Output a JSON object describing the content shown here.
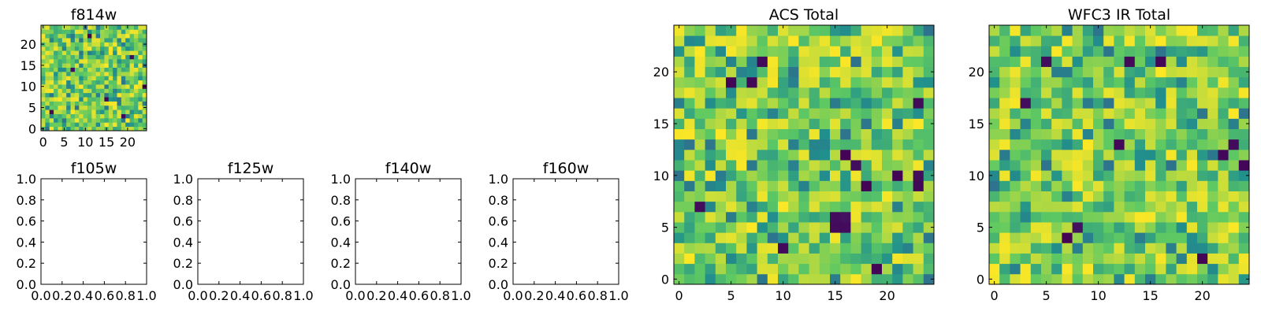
{
  "chart_data": [
    {
      "type": "heatmap",
      "title": "f814w",
      "xlabel": "",
      "ylabel": "",
      "shape": [
        25,
        25
      ],
      "xlim": [
        -0.5,
        24.5
      ],
      "ylim": [
        -0.5,
        24.5
      ],
      "xticks": [
        0,
        5,
        10,
        15,
        20
      ],
      "yticks": [
        0,
        5,
        10,
        15,
        20
      ],
      "colormap": "viridis",
      "noise_seed": 814,
      "dark_pixels": [
        [
          15,
          7
        ],
        [
          24,
          10
        ],
        [
          21,
          17
        ],
        [
          19,
          3
        ],
        [
          11,
          22
        ],
        [
          7,
          14
        ],
        [
          2,
          4
        ]
      ],
      "grid": false
    },
    {
      "type": "heatmap",
      "title": "f105w",
      "xlabel": "",
      "ylabel": "",
      "xlim": [
        0.0,
        1.0
      ],
      "ylim": [
        0.0,
        1.0
      ],
      "xticks": [
        "0.0",
        "0.2",
        "0.4",
        "0.6",
        "0.8",
        "1.0"
      ],
      "yticks": [
        "0.0",
        "0.2",
        "0.4",
        "0.6",
        "0.8",
        "1.0"
      ],
      "empty": true,
      "grid": false
    },
    {
      "type": "heatmap",
      "title": "f125w",
      "xlabel": "",
      "ylabel": "",
      "xlim": [
        0.0,
        1.0
      ],
      "ylim": [
        0.0,
        1.0
      ],
      "xticks": [
        "0.0",
        "0.2",
        "0.4",
        "0.6",
        "0.8",
        "1.0"
      ],
      "yticks": [
        "0.0",
        "0.2",
        "0.4",
        "0.6",
        "0.8",
        "1.0"
      ],
      "empty": true,
      "grid": false
    },
    {
      "type": "heatmap",
      "title": "f140w",
      "xlabel": "",
      "ylabel": "",
      "xlim": [
        0.0,
        1.0
      ],
      "ylim": [
        0.0,
        1.0
      ],
      "xticks": [
        "0.0",
        "0.2",
        "0.4",
        "0.6",
        "0.8",
        "1.0"
      ],
      "yticks": [
        "0.0",
        "0.2",
        "0.4",
        "0.6",
        "0.8",
        "1.0"
      ],
      "empty": true,
      "grid": false
    },
    {
      "type": "heatmap",
      "title": "f160w",
      "xlabel": "",
      "ylabel": "",
      "xlim": [
        0.0,
        1.0
      ],
      "ylim": [
        0.0,
        1.0
      ],
      "xticks": [
        "0.0",
        "0.2",
        "0.4",
        "0.6",
        "0.8",
        "1.0"
      ],
      "yticks": [
        "0.0",
        "0.2",
        "0.4",
        "0.6",
        "0.8",
        "1.0"
      ],
      "empty": true,
      "grid": false
    },
    {
      "type": "heatmap",
      "title": "ACS Total",
      "xlabel": "",
      "ylabel": "",
      "shape": [
        25,
        25
      ],
      "xlim": [
        -0.5,
        24.5
      ],
      "ylim": [
        -0.5,
        24.5
      ],
      "xticks": [
        0,
        5,
        10,
        15,
        20
      ],
      "yticks": [
        0,
        5,
        10,
        15,
        20
      ],
      "colormap": "viridis",
      "noise_seed": 1717,
      "dark_pixels": [
        [
          8,
          21
        ],
        [
          5,
          19
        ],
        [
          16,
          12
        ],
        [
          17,
          11
        ],
        [
          15,
          6
        ],
        [
          16,
          6
        ],
        [
          15,
          5
        ],
        [
          16,
          5
        ],
        [
          10,
          3
        ],
        [
          18,
          9
        ],
        [
          21,
          10
        ],
        [
          23,
          10
        ],
        [
          23,
          9
        ],
        [
          2,
          7
        ],
        [
          19,
          1
        ],
        [
          7,
          19
        ],
        [
          23,
          17
        ]
      ],
      "grid": false
    },
    {
      "type": "heatmap",
      "title": "WFC3 IR Total",
      "xlabel": "",
      "ylabel": "",
      "shape": [
        25,
        25
      ],
      "xlim": [
        -0.5,
        24.5
      ],
      "ylim": [
        -0.5,
        24.5
      ],
      "xticks": [
        0,
        5,
        10,
        15,
        20
      ],
      "yticks": [
        0,
        5,
        10,
        15,
        20
      ],
      "colormap": "viridis",
      "noise_seed": 3011,
      "dark_pixels": [
        [
          5,
          21
        ],
        [
          16,
          21
        ],
        [
          3,
          17
        ],
        [
          12,
          13
        ],
        [
          23,
          13
        ],
        [
          22,
          12
        ],
        [
          8,
          5
        ],
        [
          7,
          4
        ],
        [
          20,
          2
        ],
        [
          13,
          21
        ],
        [
          24,
          11
        ]
      ],
      "grid": false
    }
  ]
}
